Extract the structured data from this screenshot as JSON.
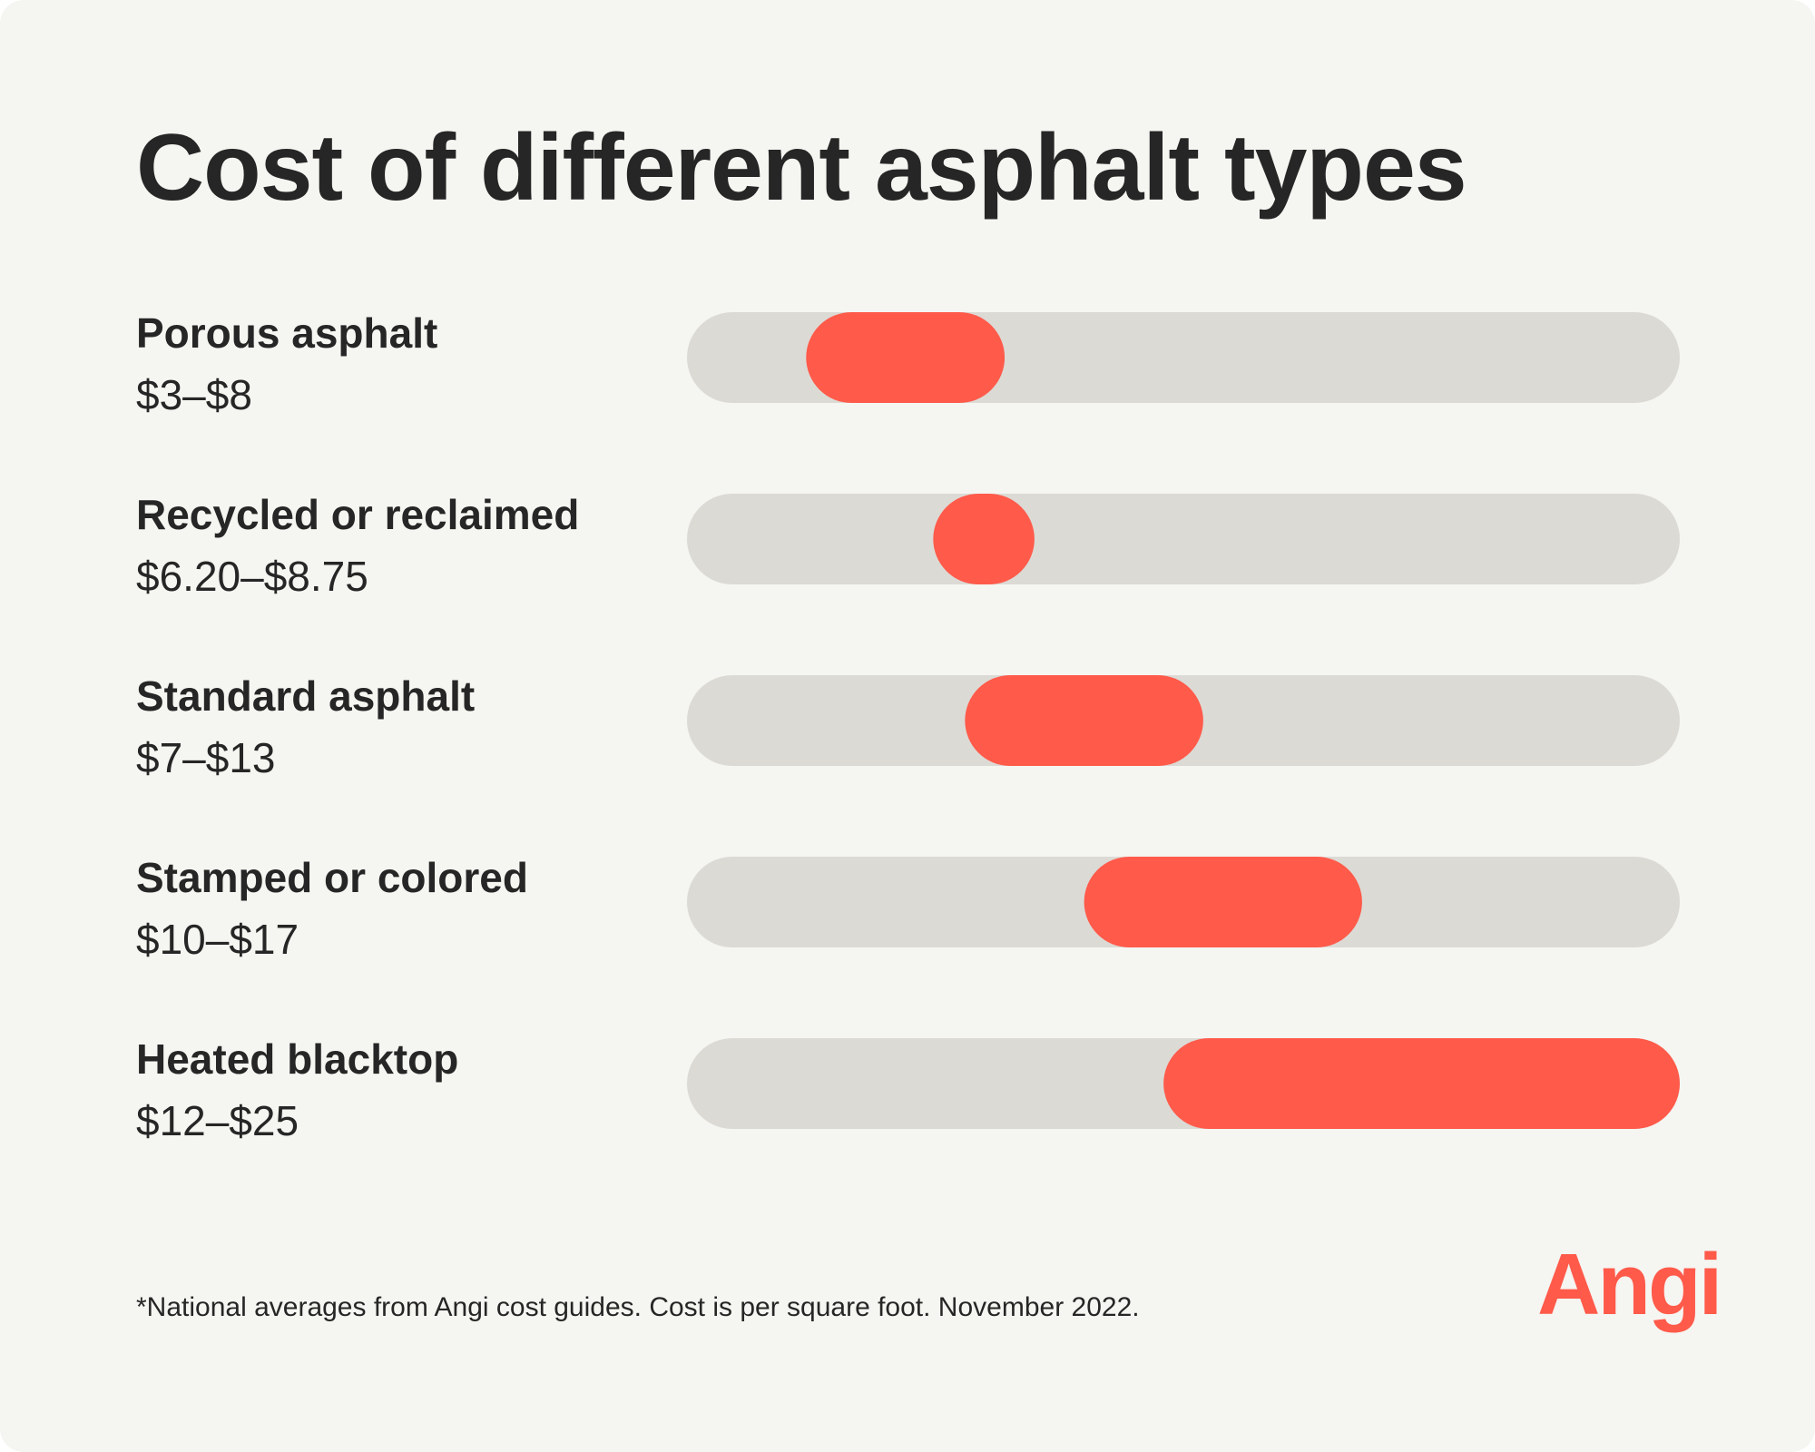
{
  "brand": {
    "name": "Angi",
    "accent_color": "#ff5a4a",
    "track_color": "#dcdad5"
  },
  "footnote": "*National averages from Angi cost guides. Cost is per square foot. November 2022.",
  "chart_data": {
    "type": "range-bar",
    "title": "Cost of different asphalt types",
    "xlim": [
      0,
      25
    ],
    "grid": false,
    "rows": [
      {
        "name": "Porous asphalt",
        "range_label": "$3–$8",
        "low": 3,
        "high": 8
      },
      {
        "name": "Recycled or reclaimed",
        "range_label": "$6.20–$8.75",
        "low": 6.2,
        "high": 8.75
      },
      {
        "name": "Standard asphalt",
        "range_label": "$7–$13",
        "low": 7,
        "high": 13
      },
      {
        "name": "Stamped or colored",
        "range_label": "$10–$17",
        "low": 10,
        "high": 17
      },
      {
        "name": "Heated blacktop",
        "range_label": "$12–$25",
        "low": 12,
        "high": 25
      }
    ]
  }
}
